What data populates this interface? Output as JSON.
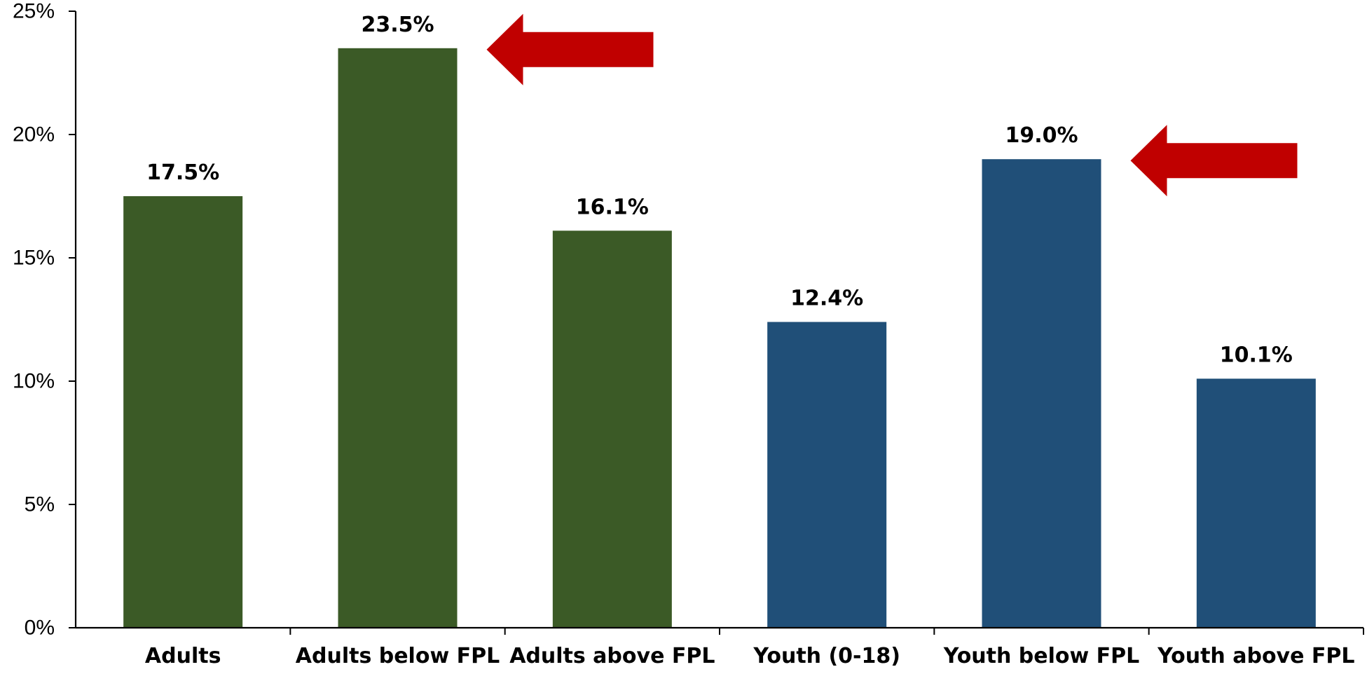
{
  "chart_data": {
    "type": "bar",
    "categories": [
      "Adults",
      "Adults below FPL",
      "Adults above FPL",
      "Youth (0-18)",
      "Youth below FPL",
      "Youth above FPL"
    ],
    "values": [
      17.5,
      23.5,
      16.1,
      12.4,
      19.0,
      10.1
    ],
    "value_labels": [
      "17.5%",
      "23.5%",
      "16.1%",
      "12.4%",
      "19.0%",
      "10.1%"
    ],
    "bar_colors": [
      "#3b5a26",
      "#3b5a26",
      "#3b5a26",
      "#204f78",
      "#204f78",
      "#204f78"
    ],
    "highlighted_categories": [
      "Adults below FPL",
      "Youth below FPL"
    ],
    "highlight_arrow_color": "#c00000",
    "title": "",
    "xlabel": "",
    "ylabel": "",
    "ylim": [
      0,
      25
    ],
    "y_ticks": [
      0,
      5,
      10,
      15,
      20,
      25
    ],
    "y_tick_labels": [
      "0%",
      "5%",
      "10%",
      "15%",
      "20%",
      "25%"
    ],
    "grid": false,
    "legend": "none"
  }
}
